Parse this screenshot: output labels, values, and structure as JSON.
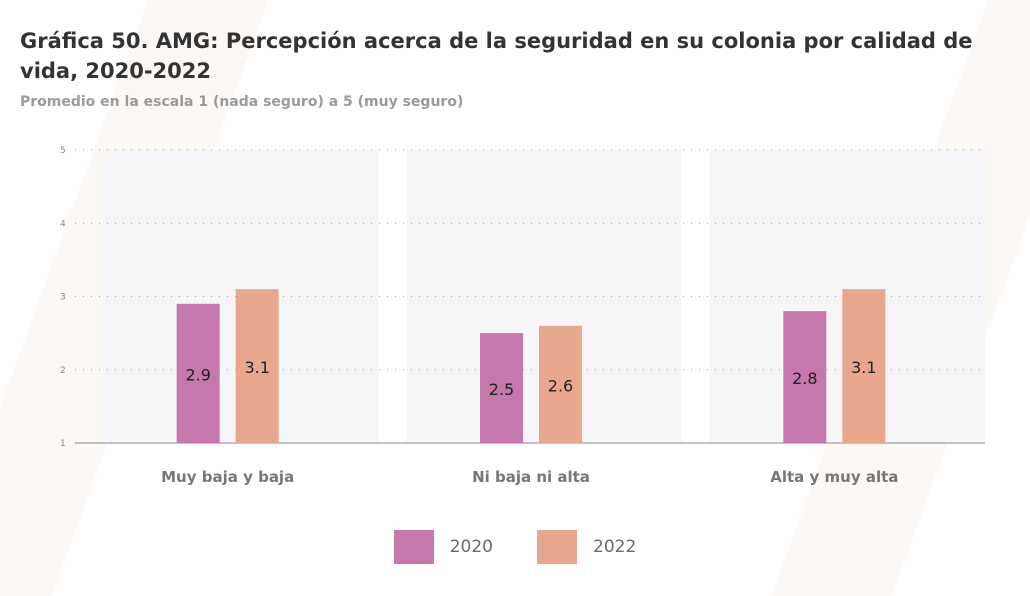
{
  "title": "Gráfica 50. AMG: Percepción acerca de la seguridad en su colonia por calidad de vida, 2020-2022",
  "subtitle": "Promedio en la escala 1 (nada seguro) a 5 (muy seguro)",
  "colors": {
    "s2020": "#c677ab",
    "s2022": "#e8a88e"
  },
  "chart_data": {
    "type": "bar",
    "categories": [
      "Muy baja y baja",
      "Ni baja ni alta",
      "Alta y muy alta"
    ],
    "series": [
      {
        "name": "2020",
        "values": [
          2.9,
          2.5,
          2.8
        ],
        "labels": [
          "2.9",
          "2.5",
          "2.8"
        ]
      },
      {
        "name": "2022",
        "values": [
          3.1,
          2.6,
          3.1
        ],
        "labels": [
          "3.1",
          "2.6",
          "3.1"
        ]
      }
    ],
    "yticks": [
      "1",
      "2",
      "3",
      "4",
      "5"
    ],
    "ylim": [
      1,
      5
    ],
    "grid": "dotted",
    "legend": "bottom"
  }
}
